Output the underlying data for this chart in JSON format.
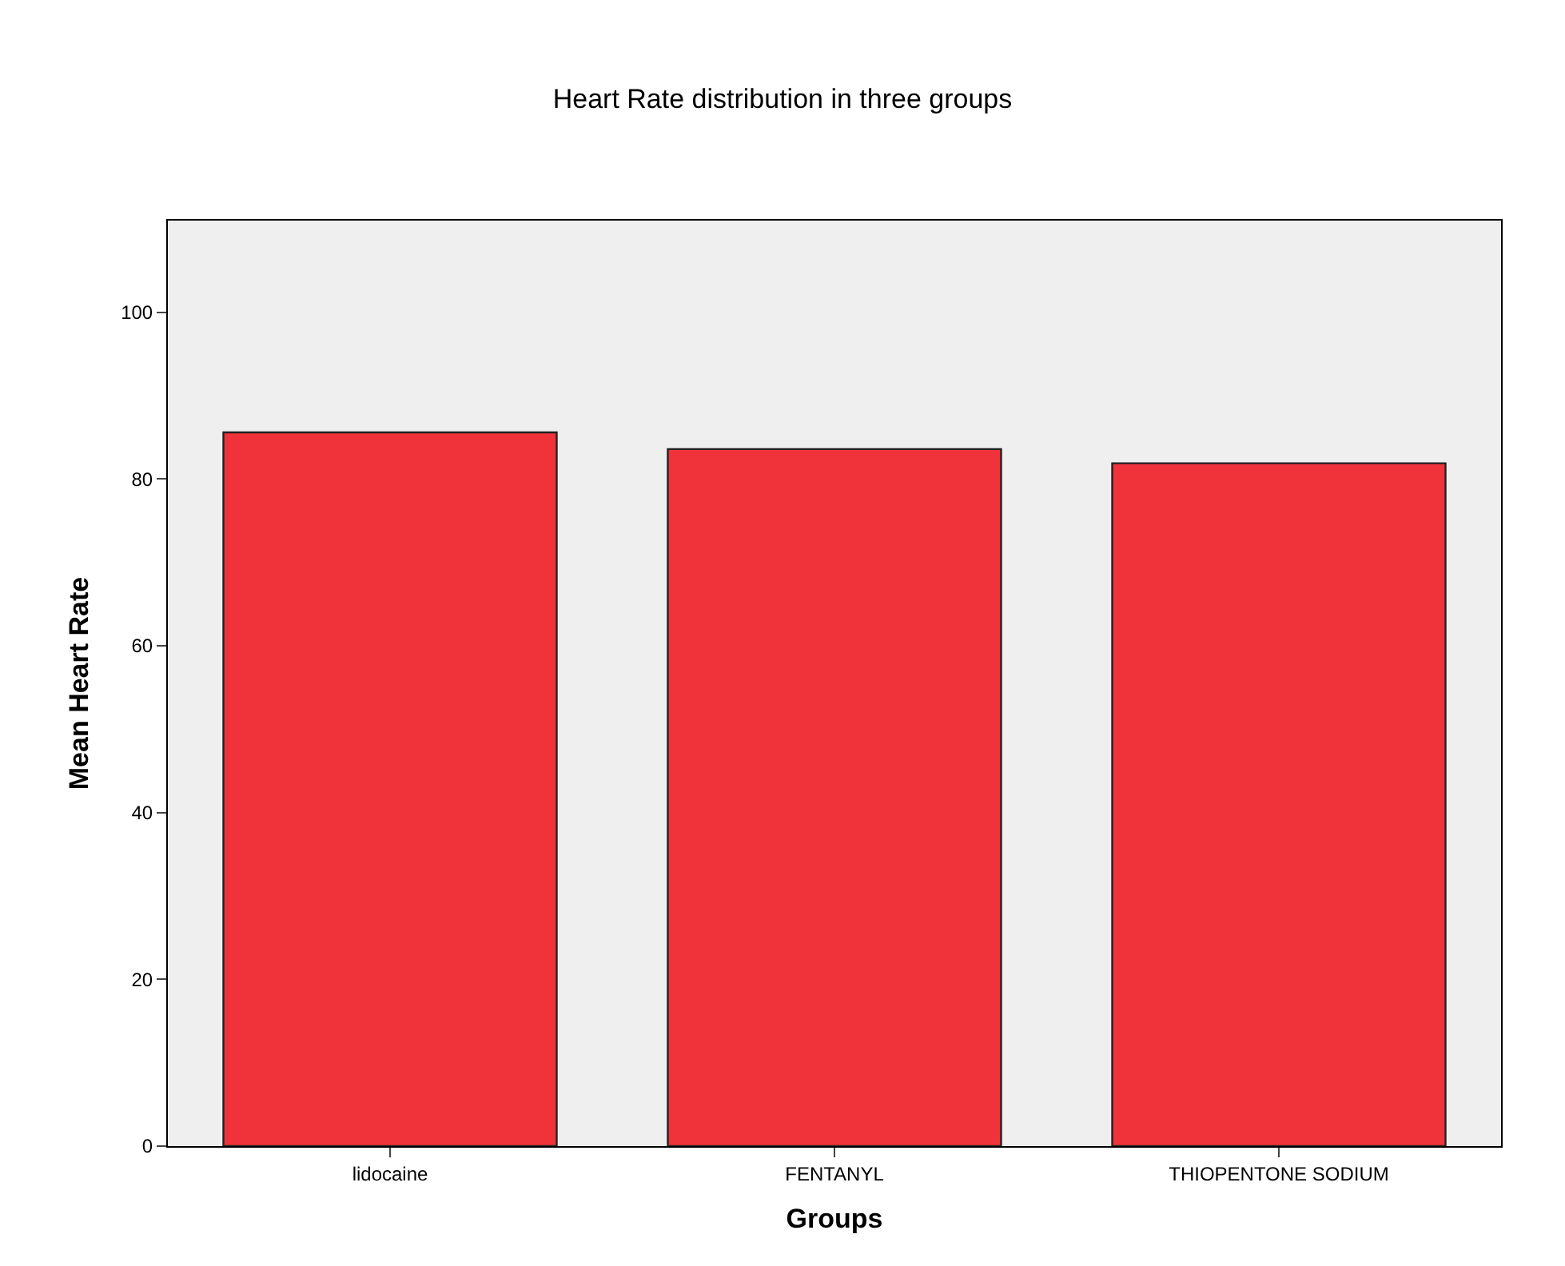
{
  "chart_data": {
    "type": "bar",
    "title": "Heart Rate distribution in three groups",
    "xlabel": "Groups",
    "ylabel": "Mean Heart Rate",
    "categories": [
      "lidocaine",
      "FENTANYL",
      "THIOPENTONE SODIUM"
    ],
    "values": [
      85.6,
      83.6,
      81.9
    ],
    "color": "#f0333a",
    "ylim": [
      0,
      111
    ],
    "yticks": [
      0,
      20,
      40,
      60,
      80,
      100
    ],
    "grid": false,
    "legend": false
  }
}
